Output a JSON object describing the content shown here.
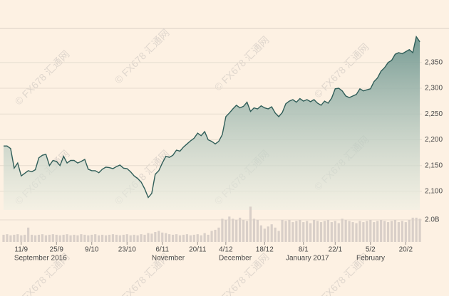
{
  "chart_data": {
    "type": "area",
    "watermark": "© FX678 汇通网",
    "categories": [
      null,
      null,
      null,
      null,
      null,
      "11/9",
      null,
      null,
      null,
      null,
      null,
      null,
      null,
      null,
      null,
      "25/9",
      null,
      null,
      null,
      null,
      null,
      null,
      null,
      null,
      null,
      "9/10",
      null,
      null,
      null,
      null,
      null,
      null,
      null,
      null,
      null,
      "23/10",
      null,
      null,
      null,
      null,
      null,
      null,
      null,
      null,
      null,
      "6/11",
      null,
      null,
      null,
      null,
      null,
      null,
      null,
      null,
      null,
      "20/11",
      null,
      null,
      null,
      null,
      null,
      null,
      null,
      "4/12",
      null,
      null,
      null,
      null,
      null,
      null,
      null,
      null,
      null,
      null,
      "18/12",
      null,
      null,
      null,
      null,
      null,
      null,
      null,
      null,
      null,
      null,
      "8/1",
      null,
      null,
      null,
      null,
      null,
      null,
      null,
      null,
      "22/1",
      null,
      null,
      null,
      null,
      null,
      null,
      null,
      null,
      null,
      "5/2",
      null,
      null,
      null,
      null,
      null,
      null,
      null,
      null,
      null,
      "20/2",
      null,
      null,
      null,
      null
    ],
    "month_labels": [
      null,
      null,
      null,
      "September 2016",
      null,
      null,
      null,
      null,
      null,
      null,
      null,
      null,
      null,
      null,
      null,
      null,
      null,
      null,
      null,
      null,
      null,
      null,
      null,
      null,
      null,
      null,
      null,
      null,
      null,
      null,
      null,
      null,
      null,
      null,
      null,
      null,
      null,
      null,
      null,
      null,
      null,
      null,
      "November",
      null,
      null,
      null,
      null,
      null,
      null,
      null,
      null,
      null,
      null,
      null,
      null,
      null,
      null,
      null,
      null,
      null,
      null,
      "December",
      null,
      null,
      null,
      null,
      null,
      null,
      null,
      null,
      null,
      null,
      null,
      null,
      null,
      null,
      null,
      null,
      null,
      null,
      "January 2017",
      null,
      null,
      null,
      null,
      null,
      null,
      null,
      null,
      null,
      null,
      null,
      null,
      null,
      null,
      null,
      null,
      null,
      null,
      null,
      "February",
      null,
      null,
      null,
      null,
      null,
      null,
      null,
      null,
      null,
      null,
      null,
      null,
      null,
      null,
      null,
      null,
      null,
      null
    ],
    "series": [
      {
        "color": "#2f5d58",
        "values": [
          2188,
          2188,
          2183,
          2145,
          2155,
          2130,
          2135,
          2140,
          2138,
          2142,
          2165,
          2170,
          2172,
          2150,
          2160,
          2158,
          2150,
          2168,
          2155,
          2160,
          2160,
          2155,
          2158,
          2162,
          2143,
          2140,
          2140,
          2136,
          2143,
          2147,
          2146,
          2144,
          2148,
          2151,
          2145,
          2144,
          2138,
          2130,
          2125,
          2118,
          2105,
          2088,
          2096,
          2133,
          2140,
          2155,
          2168,
          2166,
          2170,
          2180,
          2178,
          2186,
          2192,
          2198,
          2203,
          2213,
          2208,
          2216,
          2200,
          2197,
          2192,
          2197,
          2210,
          2245,
          2252,
          2260,
          2267,
          2262,
          2265,
          2273,
          2255,
          2262,
          2260,
          2266,
          2262,
          2260,
          2264,
          2252,
          2245,
          2253,
          2270,
          2275,
          2278,
          2273,
          2280,
          2275,
          2278,
          2274,
          2278,
          2271,
          2267,
          2275,
          2271,
          2281,
          2299,
          2300,
          2295,
          2285,
          2282,
          2285,
          2288,
          2299,
          2295,
          2297,
          2299,
          2313,
          2320,
          2333,
          2340,
          2350,
          2354,
          2366,
          2369,
          2367,
          2371,
          2375,
          2369,
          2400,
          2390
        ]
      },
      {
        "color": "#d9cfc8",
        "axis": "y2",
        "type": "bar",
        "values": [
          0.65,
          0.7,
          0.6,
          0.65,
          0.7,
          0.6,
          0.65,
          1.3,
          0.65,
          0.6,
          0.65,
          0.7,
          0.6,
          0.65,
          0.7,
          0.65,
          0.6,
          0.65,
          0.7,
          0.6,
          0.65,
          0.6,
          0.7,
          0.65,
          0.6,
          0.65,
          0.7,
          0.6,
          0.65,
          0.6,
          0.65,
          0.7,
          0.65,
          0.6,
          0.65,
          0.7,
          0.6,
          0.65,
          0.6,
          0.7,
          0.65,
          0.8,
          0.75,
          0.9,
          1.0,
          0.85,
          0.8,
          0.7,
          0.65,
          0.7,
          0.6,
          0.65,
          0.7,
          0.6,
          0.65,
          0.7,
          0.6,
          0.8,
          0.65,
          1.0,
          1.1,
          1.3,
          2.1,
          2.0,
          2.3,
          2.1,
          2.0,
          2.2,
          2.0,
          1.9,
          3.2,
          2.1,
          2.0,
          1.5,
          1.2,
          1.4,
          1.6,
          1.3,
          1.0,
          2.0,
          1.9,
          2.0,
          1.8,
          1.9,
          2.0,
          1.8,
          1.9,
          1.7,
          2.0,
          1.9,
          1.8,
          1.9,
          2.0,
          1.8,
          1.9,
          1.7,
          2.1,
          2.0,
          1.9,
          1.8,
          1.7,
          1.9,
          1.8,
          1.9,
          2.0,
          1.8,
          1.9,
          2.0,
          1.9,
          1.8,
          1.9,
          2.0,
          1.8,
          1.9,
          1.8,
          2.0,
          2.2,
          2.2,
          2.1
        ]
      }
    ],
    "ylim": [
      2064,
      2416
    ],
    "yticks": [
      {
        "value": 2100,
        "label": "2,100"
      },
      {
        "value": 2150,
        "label": "2,150"
      },
      {
        "value": 2200,
        "label": "2,200"
      },
      {
        "value": 2250,
        "label": "2,250"
      },
      {
        "value": 2300,
        "label": "2,300"
      },
      {
        "value": 2350,
        "label": "2,350"
      }
    ],
    "y2lim": [
      0,
      4
    ],
    "y2ticks": [
      {
        "value": 2,
        "label": "2.0B"
      }
    ],
    "grid": true
  }
}
